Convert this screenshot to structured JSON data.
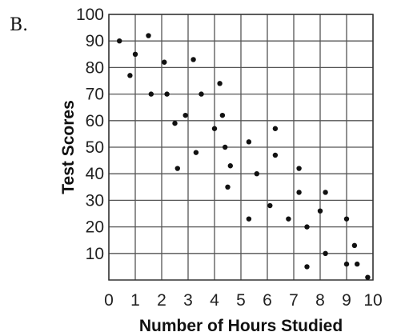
{
  "label": "B.",
  "chart_data": {
    "type": "scatter",
    "title": "",
    "xlabel": "Number of Hours Studied",
    "ylabel": "Test Scores",
    "xlim": [
      0,
      10
    ],
    "ylim": [
      0,
      100
    ],
    "grid": true,
    "x_ticks": [
      0,
      1,
      2,
      3,
      4,
      5,
      6,
      7,
      8,
      9,
      10
    ],
    "y_ticks": [
      10,
      20,
      30,
      40,
      50,
      60,
      70,
      80,
      90,
      100
    ],
    "x_tick_labels": [
      "0",
      "1",
      "2",
      "3",
      "4",
      "5",
      "6",
      "7",
      "8",
      "9",
      "10"
    ],
    "y_tick_labels": [
      "10",
      "20",
      "30",
      "40",
      "50",
      "60",
      "70",
      "80",
      "90",
      "100"
    ],
    "points": [
      {
        "x": 0.4,
        "y": 90
      },
      {
        "x": 0.8,
        "y": 77
      },
      {
        "x": 1.0,
        "y": 85
      },
      {
        "x": 1.5,
        "y": 92
      },
      {
        "x": 1.6,
        "y": 70
      },
      {
        "x": 2.1,
        "y": 82
      },
      {
        "x": 2.2,
        "y": 70
      },
      {
        "x": 2.5,
        "y": 59
      },
      {
        "x": 2.6,
        "y": 42
      },
      {
        "x": 2.9,
        "y": 62
      },
      {
        "x": 3.2,
        "y": 83
      },
      {
        "x": 3.3,
        "y": 48
      },
      {
        "x": 3.5,
        "y": 70
      },
      {
        "x": 4.0,
        "y": 57
      },
      {
        "x": 4.2,
        "y": 74
      },
      {
        "x": 4.3,
        "y": 62
      },
      {
        "x": 4.4,
        "y": 50
      },
      {
        "x": 4.5,
        "y": 35
      },
      {
        "x": 4.6,
        "y": 43
      },
      {
        "x": 5.3,
        "y": 52
      },
      {
        "x": 5.3,
        "y": 23
      },
      {
        "x": 5.6,
        "y": 40
      },
      {
        "x": 6.1,
        "y": 28
      },
      {
        "x": 6.3,
        "y": 57
      },
      {
        "x": 6.3,
        "y": 47
      },
      {
        "x": 6.8,
        "y": 23
      },
      {
        "x": 7.2,
        "y": 42
      },
      {
        "x": 7.2,
        "y": 33
      },
      {
        "x": 7.5,
        "y": 20
      },
      {
        "x": 7.5,
        "y": 5
      },
      {
        "x": 8.0,
        "y": 26
      },
      {
        "x": 8.2,
        "y": 33
      },
      {
        "x": 8.2,
        "y": 10
      },
      {
        "x": 9.0,
        "y": 23
      },
      {
        "x": 9.0,
        "y": 6
      },
      {
        "x": 9.3,
        "y": 13
      },
      {
        "x": 9.4,
        "y": 6
      },
      {
        "x": 9.8,
        "y": 1
      }
    ]
  }
}
